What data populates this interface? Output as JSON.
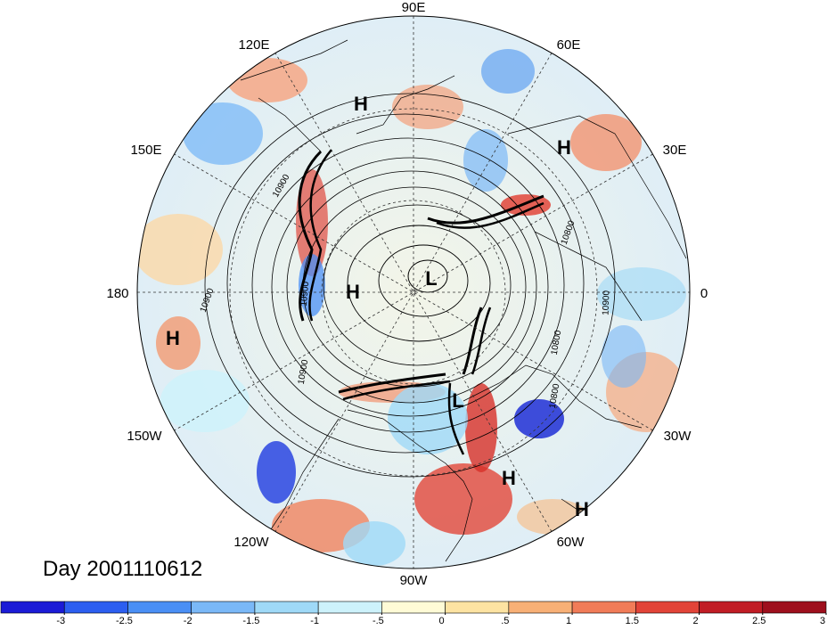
{
  "map": {
    "day_text": "Day 2001110612",
    "longitude_labels": {
      "deg90E": "90E",
      "deg60E": "60E",
      "deg30E": "30E",
      "deg0": "0",
      "deg30W": "30W",
      "deg60W": "60W",
      "deg90W": "90W",
      "deg120W": "120W",
      "deg150W": "150W",
      "deg180": "180",
      "deg150E": "150E",
      "deg120E": "120E"
    },
    "pressure_systems": [
      {
        "type": "H"
      },
      {
        "type": "H"
      },
      {
        "type": "H"
      },
      {
        "type": "L"
      },
      {
        "type": "H"
      },
      {
        "type": "L"
      },
      {
        "type": "H"
      },
      {
        "type": "H"
      }
    ],
    "contour_labels": [
      "10900",
      "10900",
      "10900",
      "10900",
      "10800",
      "10900",
      "10800",
      "10800"
    ]
  },
  "colorbar": {
    "colors": [
      "#1b1bd6",
      "#2c5ef0",
      "#4a8ff5",
      "#7ab8f7",
      "#9fd9f7",
      "#cdf2fb",
      "#fffbd6",
      "#fde3a2",
      "#f8b076",
      "#f17c58",
      "#e24438",
      "#c11d25",
      "#9e0f1d"
    ],
    "tick_labels": [
      "-3",
      "-2.5",
      "-2",
      "-1.5",
      "-1",
      "-.5",
      "0",
      ".5",
      "1",
      "1.5",
      "2",
      "2.5",
      "3"
    ]
  }
}
